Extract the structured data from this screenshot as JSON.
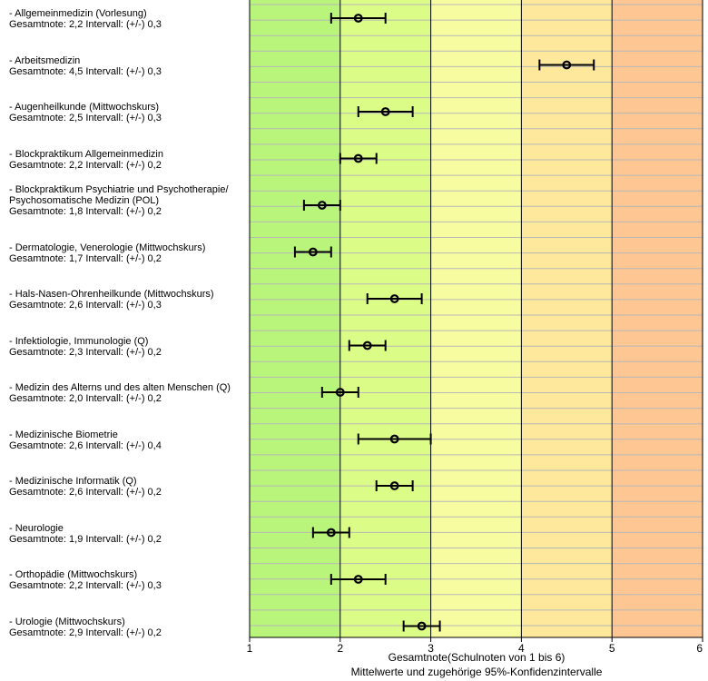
{
  "chart_data": {
    "type": "scatter",
    "xlabel": "Gesamtnote(Schulnoten von 1 bis 6)",
    "subtitle": "Mittelwerte und zugehörige 95%-Konfidenzintervalle",
    "xlim": [
      1,
      6
    ],
    "xticks": [
      "1",
      "2",
      "3",
      "4",
      "5",
      "6"
    ],
    "grid": true,
    "bands": [
      {
        "from": 1,
        "to": 2,
        "color": "#b9f57a"
      },
      {
        "from": 2,
        "to": 3,
        "color": "#dcfc88"
      },
      {
        "from": 3,
        "to": 4,
        "color": "#f8fca0"
      },
      {
        "from": 4,
        "to": 5,
        "color": "#fde89b"
      },
      {
        "from": 5,
        "to": 6,
        "color": "#fdc693"
      }
    ],
    "items": [
      {
        "name": "- Allgemeinmedizin (Vorlesung)",
        "text": "Gesamtnote: 2,2 Intervall: (+/-) 0,3",
        "mean": 2.2,
        "ci": 0.3
      },
      {
        "name": "- Arbeitsmedizin",
        "text": "Gesamtnote: 4,5 Intervall: (+/-) 0,3",
        "mean": 4.5,
        "ci": 0.3
      },
      {
        "name": "- Augenheilkunde (Mittwochskurs)",
        "text": "Gesamtnote: 2,5 Intervall: (+/-) 0,3",
        "mean": 2.5,
        "ci": 0.3
      },
      {
        "name": "- Blockpraktikum Allgemeinmedizin",
        "text": "Gesamtnote: 2,2 Intervall: (+/-) 0,2",
        "mean": 2.2,
        "ci": 0.2
      },
      {
        "name": "- Blockpraktikum Psychiatrie und Psychotherapie/\nPsychosomatische Medizin (POL)",
        "text": "Gesamtnote: 1,8 Intervall: (+/-) 0,2",
        "mean": 1.8,
        "ci": 0.2
      },
      {
        "name": "- Dermatologie, Venerologie (Mittwochskurs)",
        "text": "Gesamtnote: 1,7 Intervall: (+/-) 0,2",
        "mean": 1.7,
        "ci": 0.2
      },
      {
        "name": "- Hals-Nasen-Ohrenheilkunde (Mittwochskurs)",
        "text": "Gesamtnote: 2,6 Intervall: (+/-) 0,3",
        "mean": 2.6,
        "ci": 0.3
      },
      {
        "name": "- Infektiologie, Immunologie (Q)",
        "text": "Gesamtnote: 2,3 Intervall: (+/-) 0,2",
        "mean": 2.3,
        "ci": 0.2
      },
      {
        "name": "- Medizin des Alterns und des alten Menschen (Q)",
        "text": "Gesamtnote: 2,0 Intervall: (+/-) 0,2",
        "mean": 2.0,
        "ci": 0.2
      },
      {
        "name": "- Medizinische Biometrie",
        "text": "Gesamtnote: 2,6 Intervall: (+/-) 0,4",
        "mean": 2.6,
        "ci": 0.4
      },
      {
        "name": "- Medizinische Informatik (Q)",
        "text": "Gesamtnote: 2,6 Intervall: (+/-) 0,2",
        "mean": 2.6,
        "ci": 0.2
      },
      {
        "name": "- Neurologie",
        "text": "Gesamtnote: 1,9 Intervall: (+/-) 0,2",
        "mean": 1.9,
        "ci": 0.2
      },
      {
        "name": "- Orthopädie (Mittwochskurs)",
        "text": "Gesamtnote: 2,2 Intervall: (+/-) 0,3",
        "mean": 2.2,
        "ci": 0.3
      },
      {
        "name": "- Urologie (Mittwochskurs)",
        "text": "Gesamtnote: 2,9 Intervall: (+/-) 0,2",
        "mean": 2.9,
        "ci": 0.2
      }
    ]
  }
}
